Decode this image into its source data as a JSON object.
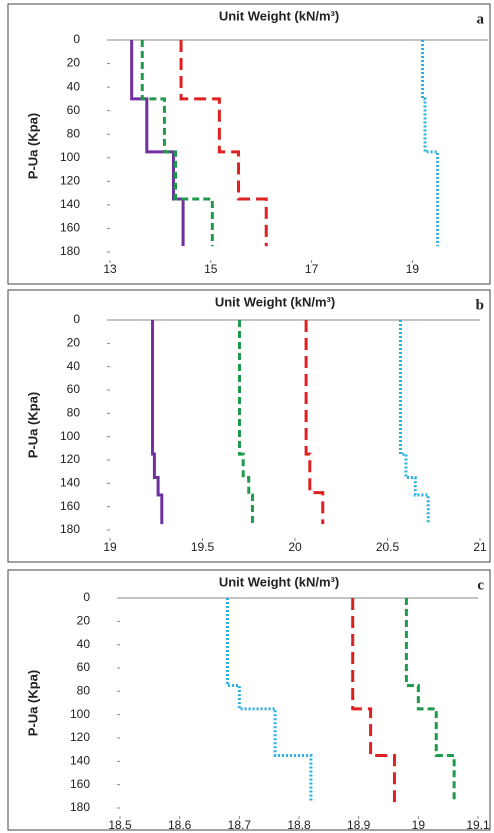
{
  "chart_data": [
    {
      "type": "line",
      "title": "Unit Weight (kN/m³)",
      "ylabel": "P-Ua (Kpa)",
      "panel_label": "a",
      "xlim": [
        13,
        20.5
      ],
      "xticks": [
        13,
        15,
        17,
        19
      ],
      "ylim": [
        0,
        180
      ],
      "yticks": [
        0,
        20,
        40,
        60,
        80,
        100,
        120,
        140,
        160,
        180
      ],
      "y_inverted": true,
      "series": [
        {
          "color": "#7030a0",
          "style": "solid",
          "x": [
            13.43,
            13.43,
            13.73,
            13.73,
            14.26,
            14.26,
            14.45,
            14.45
          ],
          "y": [
            0,
            50,
            50,
            95,
            95,
            135,
            135,
            175
          ]
        },
        {
          "color": "#1f9a4a",
          "style": "dashed",
          "x": [
            13.64,
            13.64,
            14.08,
            14.08,
            14.3,
            14.3,
            15.03,
            15.03
          ],
          "y": [
            0,
            50,
            50,
            95,
            95,
            135,
            135,
            175
          ]
        },
        {
          "color": "#e02020",
          "style": "longdash",
          "x": [
            14.41,
            14.41,
            15.17,
            15.17,
            15.55,
            15.55,
            16.1,
            16.1
          ],
          "y": [
            0,
            50,
            50,
            95,
            95,
            135,
            135,
            175
          ]
        },
        {
          "color": "#2ab0e0",
          "style": "dotted",
          "x": [
            19.2,
            19.2,
            19.25,
            19.25,
            19.5,
            19.5
          ],
          "y": [
            0,
            50,
            50,
            95,
            95,
            175
          ]
        }
      ]
    },
    {
      "type": "line",
      "title": "Unit Weight (kN/m³)",
      "ylabel": "P-Ua (Kpa)",
      "panel_label": "b",
      "xlim": [
        19,
        21
      ],
      "xticks": [
        19,
        19.5,
        20,
        20.5,
        21
      ],
      "ylim": [
        0,
        180
      ],
      "yticks": [
        0,
        20,
        40,
        60,
        80,
        100,
        120,
        140,
        160,
        180
      ],
      "y_inverted": true,
      "series": [
        {
          "color": "#7030a0",
          "style": "solid",
          "x": [
            19.23,
            19.23,
            19.24,
            19.24,
            19.26,
            19.26,
            19.28,
            19.28
          ],
          "y": [
            0,
            115,
            115,
            135,
            135,
            150,
            150,
            175
          ]
        },
        {
          "color": "#1f9a4a",
          "style": "dashed",
          "x": [
            19.7,
            19.7,
            19.72,
            19.72,
            19.75,
            19.75,
            19.77,
            19.77
          ],
          "y": [
            0,
            115,
            115,
            135,
            135,
            150,
            150,
            175
          ]
        },
        {
          "color": "#e02020",
          "style": "longdash",
          "x": [
            20.06,
            20.06,
            20.08,
            20.08,
            20.15,
            20.15
          ],
          "y": [
            0,
            115,
            115,
            148,
            148,
            175
          ]
        },
        {
          "color": "#2ab0e0",
          "style": "dotted",
          "x": [
            20.57,
            20.57,
            20.6,
            20.6,
            20.65,
            20.65,
            20.72,
            20.72
          ],
          "y": [
            0,
            115,
            115,
            135,
            135,
            150,
            150,
            175
          ]
        }
      ]
    },
    {
      "type": "line",
      "title": "Unit Weight (kN/m³)",
      "ylabel": "P-Ua (Kpa)",
      "panel_label": "c",
      "xlim": [
        18.5,
        19.1
      ],
      "xticks": [
        18.5,
        18.6,
        18.7,
        18.8,
        18.9,
        19,
        19.1
      ],
      "ylim": [
        0,
        180
      ],
      "yticks": [
        0,
        20,
        40,
        60,
        80,
        100,
        120,
        140,
        160,
        180
      ],
      "y_inverted": true,
      "series": [
        {
          "color": "#2ab0e0",
          "style": "dotted",
          "x": [
            18.68,
            18.68,
            18.7,
            18.7,
            18.76,
            18.76,
            18.82,
            18.82
          ],
          "y": [
            0,
            75,
            75,
            95,
            95,
            135,
            135,
            175
          ]
        },
        {
          "color": "#e02020",
          "style": "longdash",
          "x": [
            18.89,
            18.89,
            18.92,
            18.92,
            18.96,
            18.96
          ],
          "y": [
            0,
            95,
            95,
            135,
            135,
            175
          ]
        },
        {
          "color": "#1f9a4a",
          "style": "dashed",
          "x": [
            18.98,
            18.98,
            19,
            19,
            19.03,
            19.03,
            19.06,
            19.06
          ],
          "y": [
            0,
            75,
            75,
            95,
            95,
            135,
            135,
            175
          ]
        }
      ]
    }
  ]
}
